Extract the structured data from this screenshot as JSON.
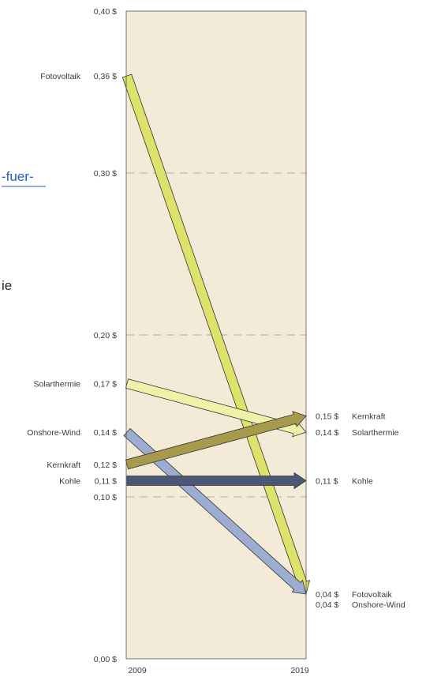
{
  "background_fragments": {
    "link_fragment": "-fuer-",
    "text_fragment": "ie"
  },
  "chart_data": {
    "type": "slope",
    "x": [
      "2009",
      "2019"
    ],
    "ylim": [
      0,
      0.4
    ],
    "y_ticks": [
      {
        "value": 0.0,
        "label": "0,00 $"
      },
      {
        "value": 0.1,
        "label": "0,10 $"
      },
      {
        "value": 0.2,
        "label": "0,20 $"
      },
      {
        "value": 0.3,
        "label": "0,30 $"
      },
      {
        "value": 0.4,
        "label": "0,40 $"
      }
    ],
    "gridlines": [
      0.1,
      0.2,
      0.3
    ],
    "series": [
      {
        "name": "Fotovoltaik",
        "start": 0.36,
        "end": 0.04,
        "start_label": "0,36 $",
        "end_label": "0,04 $",
        "color": "#dde36a"
      },
      {
        "name": "Solarthermie",
        "start": 0.17,
        "end": 0.14,
        "start_label": "0,17 $",
        "end_label": "0,14 $",
        "color": "#eef2a8"
      },
      {
        "name": "Onshore-Wind",
        "start": 0.14,
        "end": 0.04,
        "start_label": "0,14 $",
        "end_label": "0,04 $",
        "color": "#9dadd2"
      },
      {
        "name": "Kernkraft",
        "start": 0.12,
        "end": 0.15,
        "start_label": "0,12 $",
        "end_label": "0,15 $",
        "color": "#a89a4c"
      },
      {
        "name": "Kohle",
        "start": 0.11,
        "end": 0.11,
        "start_label": "0,11 $",
        "end_label": "0,11 $",
        "color": "#4b5875"
      }
    ]
  },
  "colors": {
    "plot_background": "#f4ead8",
    "frame": "#555555",
    "grid": "#999999",
    "arrow_outline": "#333333"
  }
}
